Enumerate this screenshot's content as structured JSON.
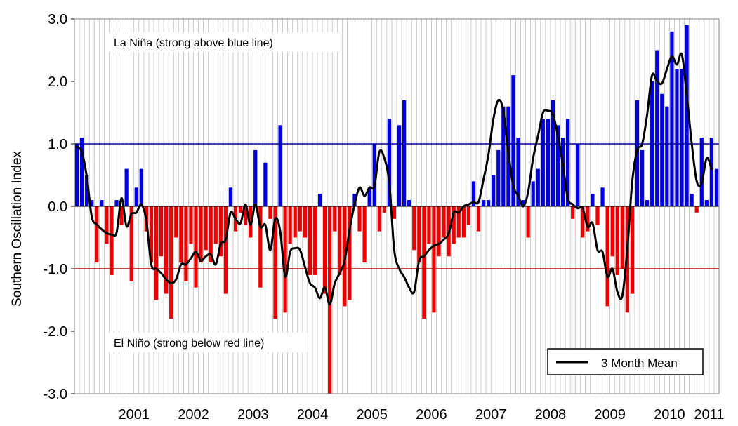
{
  "chart_data": {
    "type": "bar",
    "title": "",
    "xlabel": "",
    "ylabel": "Southern Oscillation Index",
    "ylim": [
      -3.0,
      3.0
    ],
    "y_ticks": [
      "3.0",
      "2.0",
      "1.0",
      "0.0",
      "-1.0",
      "-2.0",
      "-3.0"
    ],
    "x_ticks": [
      "2001",
      "2002",
      "2003",
      "2004",
      "2005",
      "2006",
      "2007",
      "2008",
      "2009",
      "2010",
      "2011"
    ],
    "start": "2000-07",
    "positive_color": "#0000e0",
    "negative_color": "#ee0000",
    "annotations": {
      "la_nina": "La Niña (strong above blue line)",
      "el_nino": "El Niño (strong below red line)"
    },
    "thresholds": [
      {
        "value": 1.0,
        "color": "#00009c"
      },
      {
        "value": -1.0,
        "color": "#cc0000"
      }
    ],
    "legend": {
      "label": "3 Month Mean",
      "placement": "bottom-right"
    },
    "values": [
      1.0,
      1.1,
      0.5,
      0.1,
      -0.9,
      0.1,
      -0.6,
      -1.1,
      0.1,
      -0.3,
      0.6,
      -1.2,
      0.3,
      0.6,
      -0.4,
      -0.9,
      -1.5,
      -0.8,
      -1.4,
      -1.8,
      -0.5,
      -0.9,
      -1.2,
      -0.6,
      -1.3,
      -0.9,
      -0.7,
      -0.9,
      -0.6,
      -0.8,
      -1.4,
      0.3,
      -0.4,
      -0.1,
      -0.3,
      -0.5,
      0.9,
      -1.3,
      0.7,
      -0.2,
      -1.8,
      1.3,
      -1.7,
      -0.6,
      -0.5,
      -0.4,
      -0.5,
      -1.1,
      -1.1,
      0.2,
      -1.4,
      -3.0,
      -0.4,
      -1.1,
      -1.6,
      -1.5,
      0.2,
      -0.4,
      -0.9,
      0.3,
      1.0,
      -0.4,
      -0.1,
      1.4,
      -0.2,
      1.3,
      1.7,
      0.1,
      -0.7,
      -0.9,
      -1.8,
      -0.6,
      -1.7,
      -0.8,
      -0.5,
      -0.8,
      -0.6,
      -0.5,
      -0.5,
      -0.3,
      0.4,
      -0.4,
      0.1,
      0.1,
      0.5,
      0.9,
      1.6,
      1.6,
      2.1,
      1.1,
      0.1,
      -0.5,
      0.4,
      0.6,
      1.4,
      1.4,
      1.7,
      1.3,
      1.1,
      1.4,
      -0.2,
      1.0,
      -0.5,
      -0.4,
      0.2,
      -0.3,
      0.3,
      -1.6,
      -0.8,
      -1.1,
      -1.0,
      -1.7,
      -1.4,
      1.7,
      0.9,
      0.1,
      2.0,
      2.5,
      1.8,
      1.6,
      2.8,
      2.2,
      2.2,
      2.9,
      0.2,
      -0.1,
      1.1,
      0.1,
      1.1,
      0.6
    ],
    "mean_3month": [
      0.95,
      0.87,
      0.47,
      -0.17,
      -0.29,
      -0.37,
      -0.43,
      -0.45,
      -0.42,
      0.13,
      -0.32,
      -0.12,
      -0.1,
      0.03,
      -0.23,
      -0.93,
      -1.0,
      -1.07,
      -1.17,
      -1.23,
      -1.17,
      -0.93,
      -0.93,
      -0.83,
      -0.73,
      -0.87,
      -0.8,
      -0.77,
      -0.93,
      -0.6,
      -0.53,
      -0.1,
      -0.2,
      -0.27,
      0.03,
      -0.3,
      0.03,
      -0.33,
      -0.3,
      -0.7,
      -0.2,
      -0.4,
      -1.13,
      -0.73,
      -0.67,
      -0.7,
      -0.97,
      -1.23,
      -1.3,
      -1.47,
      -1.3,
      -1.57,
      -1.23,
      -1.07,
      -0.87,
      -0.37,
      0.03,
      0.3,
      0.17,
      0.3,
      0.33,
      0.87,
      0.77,
      0.37,
      -0.7,
      -1.0,
      -1.13,
      -1.3,
      -1.37,
      -0.87,
      -0.8,
      -0.7,
      -0.63,
      -0.6,
      -0.53,
      -0.43,
      -0.1,
      -0.1,
      0.0,
      0.03,
      0.07,
      0.07,
      0.43,
      0.83,
      1.4,
      1.7,
      1.53,
      0.87,
      0.33,
      0.17,
      0.0,
      0.23,
      0.77,
      1.13,
      1.5,
      1.53,
      1.47,
      1.13,
      0.67,
      0.13,
      0.03,
      -0.03,
      -0.03,
      -0.33,
      -0.27,
      -0.7,
      -0.73,
      -1.13,
      -1.0,
      -1.37,
      -1.43,
      -0.67,
      0.4,
      0.9,
      1.0,
      1.47,
      2.1,
      2.0,
      1.97,
      2.2,
      2.4,
      2.27,
      2.43,
      1.77,
      1.0,
      0.4,
      0.37,
      0.77,
      0.6
    ]
  }
}
